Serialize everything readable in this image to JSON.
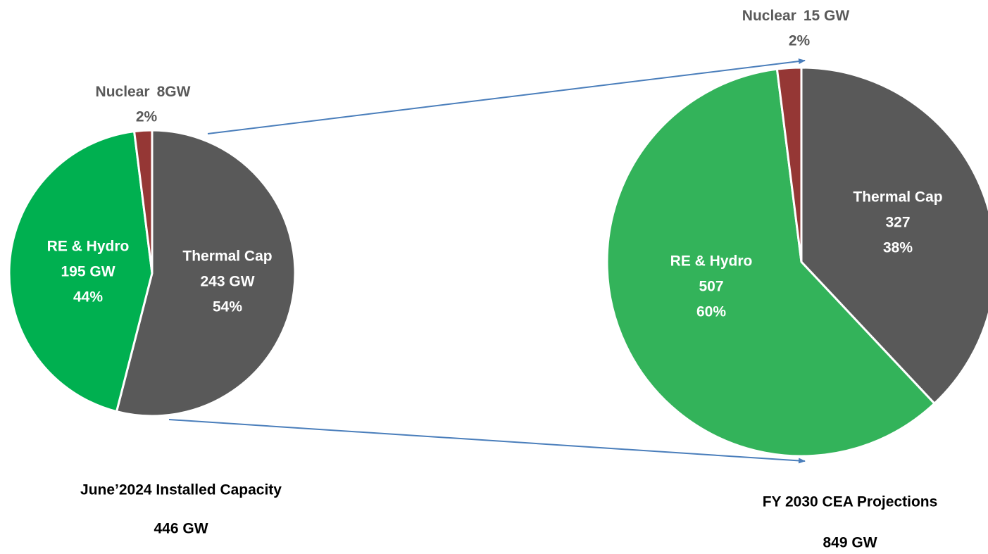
{
  "chart_data": [
    {
      "type": "pie",
      "title": "June’2024 Installed Capacity",
      "subtitle": "446 GW",
      "categories": [
        "Thermal Cap",
        "RE & Hydro",
        "Nuclear"
      ],
      "values": [
        54,
        44,
        2
      ],
      "value_labels": [
        "54%",
        "44%",
        "2%"
      ],
      "capacity_labels": [
        "243 GW",
        "195 GW",
        "8GW"
      ],
      "colors": [
        "#595959",
        "#00b050",
        "#953735"
      ]
    },
    {
      "type": "pie",
      "title": "FY 2030 CEA Projections",
      "subtitle": "849 GW",
      "categories": [
        "Thermal Cap",
        "RE & Hydro",
        "Nuclear"
      ],
      "values": [
        38,
        60,
        2
      ],
      "value_labels": [
        "38%",
        "60%",
        "2%"
      ],
      "capacity_labels": [
        "327",
        "507",
        "15 GW"
      ],
      "colors": [
        "#595959",
        "#33b35a",
        "#953735"
      ]
    }
  ]
}
